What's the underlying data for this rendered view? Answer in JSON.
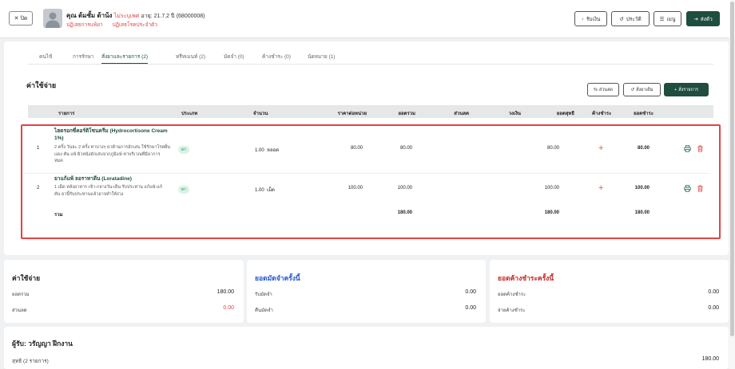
{
  "header": {
    "close_label": "ปิด",
    "patient_name": "คุณ ต้มชั้ม ต้าน้ง",
    "unknown_label": "ไม่ระบุเพศ",
    "age_label": "อายุ: 21.7.2 ปี",
    "hn": "(68000008)",
    "allergy_drug": "ปฏิเสธการแพ้ยา",
    "allergy_disease": "ปฏิเสธโรคประจำตัว",
    "btn_receive": "รับเงิน",
    "btn_history": "ประวัติ",
    "btn_menu": "เมนู",
    "btn_send": "ส่งตัว"
  },
  "tabs": [
    {
      "label": "คนไข้"
    },
    {
      "label": "การรักษา"
    },
    {
      "label": "สั่งยาและรายการ (2)"
    },
    {
      "label": "ทรีทเมนท์ (2)"
    },
    {
      "label": "มัดจำ (0)"
    },
    {
      "label": "ค้างชำระ (0)"
    },
    {
      "label": "นัดหมาย (1)"
    }
  ],
  "section": {
    "title": "ค่าใช้จ่าย",
    "btn_discount": "ส่วนลด",
    "btn_history": "สั่งยาเดิม",
    "btn_add": "สั่งรายการ"
  },
  "table": {
    "headers": [
      "รายการ",
      "ประเภท",
      "จำนวน",
      "ราคาต่อหน่วย",
      "ยอดรวม",
      "ส่วนลด",
      "วงเงิน",
      "ยอดสุทธิ",
      "ค้างชำระ",
      "ยอดชำระ"
    ],
    "rows": [
      {
        "no": "1",
        "name_line1": "ไฮดรอกซี่คอร์ติโซนครีม (Hydrocortisone Cream",
        "name_line2": "1%)",
        "desc_line1": "2 ครั้ง วันละ 2 ครั้ง ทาบางๆ ยาต้านการอักเสบ ใช้รักษาโรคผื่น",
        "desc_line2": "แดง คัน แพ้ ผิวหนังอักเสบจากภูมิแพ้ ทาบริเวณที่มีอาการ",
        "desc_line3": "หมด",
        "type": "ยา",
        "qty": "1.00",
        "unit": "หลอด",
        "price": "80.00",
        "total": "80.00",
        "net": "80.00",
        "pay": "80.00"
      },
      {
        "no": "2",
        "name_line1": "ยาแก้แพ้ ลอราทาดีน (Loratadine)",
        "desc_line1": "1 เม็ด หลังอาหาร เช้า-กลางวัน-เย็น รับประทาน แก้แพ้-แก้",
        "desc_line2": "คัน ยานี้รับประทานแล้วอาจทำให้ง่วง",
        "type": "ยา",
        "qty": "1.00",
        "unit": "เม็ด",
        "price": "100.00",
        "total": "100.00",
        "net": "100.00",
        "pay": "100.00"
      }
    ],
    "sum_label": "รวม",
    "sum_total": "180.00",
    "sum_net": "180.00",
    "sum_pay": "180.00"
  },
  "summary": {
    "expense_title": "ค่าใช้จ่าย",
    "total_label": "ยอดรวม",
    "total_value": "180.00",
    "discount_label": "ส่วนลด",
    "discount_value": "0.00",
    "deposit_title": "ยอดมัดจำครั้งนี้",
    "deposit_recv_label": "รับมัดจำ",
    "deposit_recv_value": "0.00",
    "deposit_return_label": "คืนมัดจำ",
    "deposit_return_value": "0.00",
    "outstanding_title": "ยอดค้างชำระครั้งนี้",
    "outstanding_label": "ยอดค้างชำระ",
    "outstanding_value": "0.00",
    "outstanding_pay_label": "จ่ายค้างชำระ",
    "outstanding_pay_value": "0.00"
  },
  "footer": {
    "payer": "ผู้รับ: วรัญญา ฝีกงาน",
    "net_label": "สุทธิ (2 รายการ)",
    "net_value": "180.00"
  }
}
